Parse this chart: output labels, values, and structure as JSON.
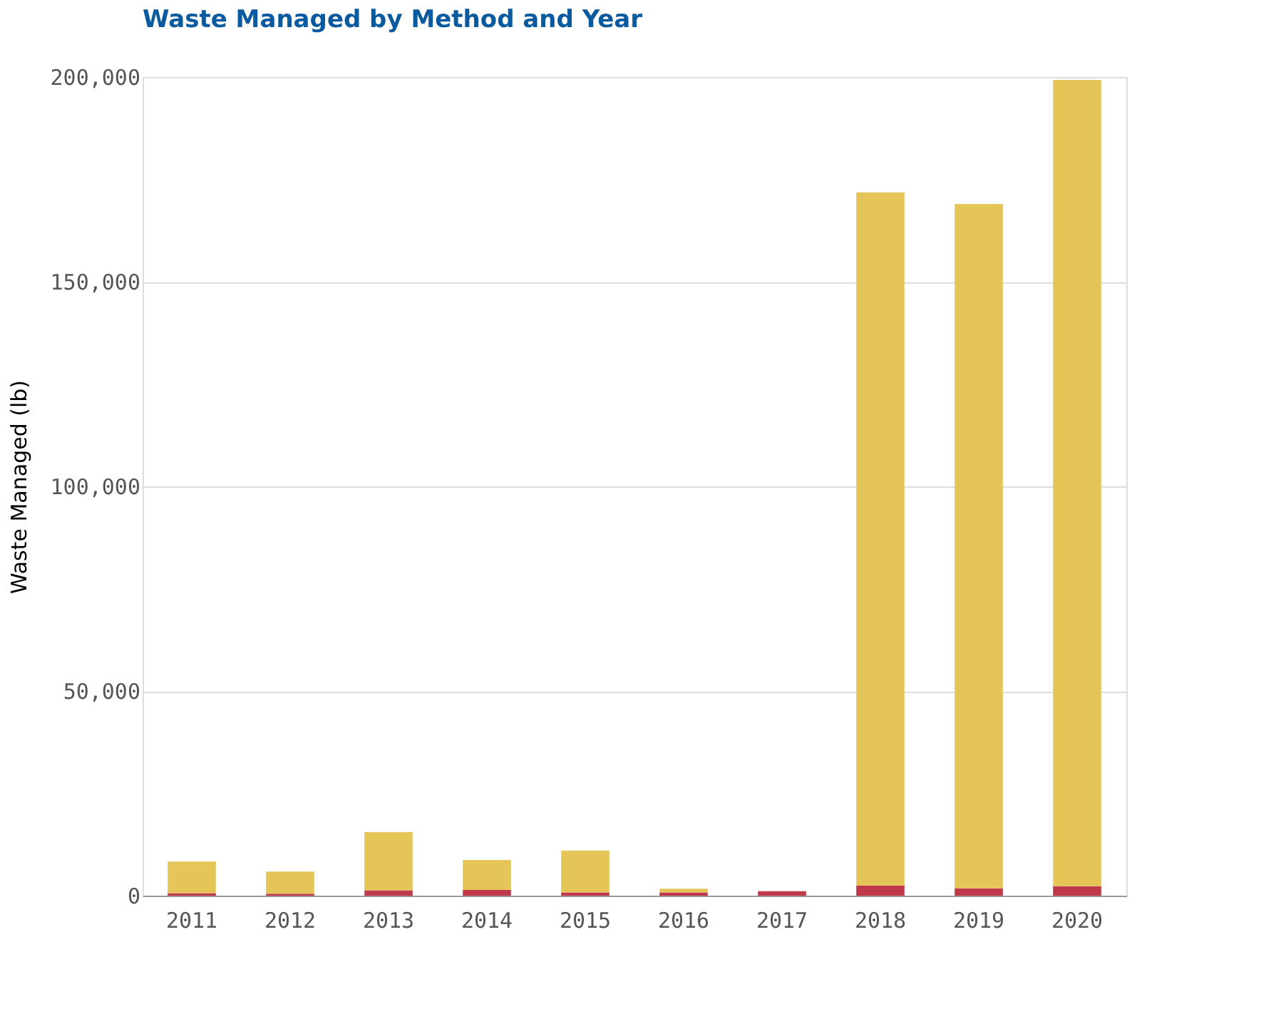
{
  "chart_data": {
    "type": "bar",
    "title": "Waste Managed by Method and Year",
    "ylabel": "Waste Managed (lb)",
    "categories": [
      "2011",
      "2012",
      "2013",
      "2014",
      "2015",
      "2016",
      "2017",
      "2018",
      "2019",
      "2020"
    ],
    "stacked": true,
    "series": [
      {
        "color": "#c0394a",
        "values": [
          600,
          500,
          1300,
          1400,
          800,
          800,
          1100,
          2500,
          1800,
          2300
        ]
      },
      {
        "color": "#e5c558",
        "values": [
          7700,
          5400,
          14200,
          7300,
          10200,
          900,
          0,
          169300,
          167200,
          197000
        ]
      }
    ],
    "ylim": [
      0,
      200000
    ],
    "yticks": [
      {
        "value": 0,
        "label": "0"
      },
      {
        "value": 50000,
        "label": "50,000"
      },
      {
        "value": 100000,
        "label": "100,000"
      },
      {
        "value": 150000,
        "label": "150,000"
      },
      {
        "value": 200000,
        "label": "200,000"
      }
    ],
    "grid": "y",
    "legend": false
  }
}
